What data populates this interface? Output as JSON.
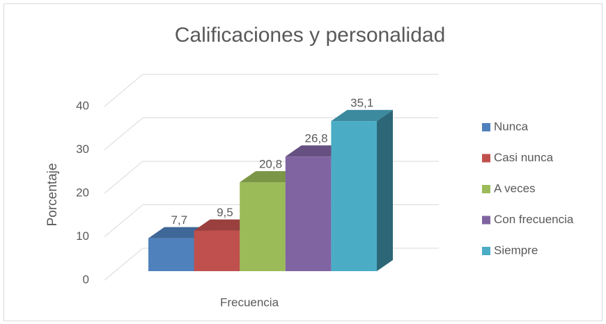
{
  "chart_data": {
    "type": "bar3d",
    "title": "Calificaciones y personalidad",
    "y_label": "Porcentaje",
    "x_label": "Frecuencia",
    "categories": [
      "Frecuencia"
    ],
    "series": [
      {
        "name": "Nunca",
        "color": "#4f81bd",
        "values": [
          7.7
        ],
        "value_labels": [
          "7,7"
        ]
      },
      {
        "name": "Casi nunca",
        "color": "#c0504d",
        "values": [
          9.5
        ],
        "value_labels": [
          "9,5"
        ]
      },
      {
        "name": "A veces",
        "color": "#9bbb59",
        "values": [
          20.8
        ],
        "value_labels": [
          "20,8"
        ]
      },
      {
        "name": "Con frecuencia",
        "color": "#8064a2",
        "values": [
          26.8
        ],
        "value_labels": [
          "26,8"
        ]
      },
      {
        "name": "Siempre",
        "color": "#4bacc6",
        "values": [
          35.1
        ],
        "value_labels": [
          "35,1"
        ]
      }
    ],
    "ylim": [
      0,
      40
    ],
    "yticks": [
      0,
      10,
      20,
      30,
      40
    ],
    "grid": true,
    "legend": "right"
  }
}
